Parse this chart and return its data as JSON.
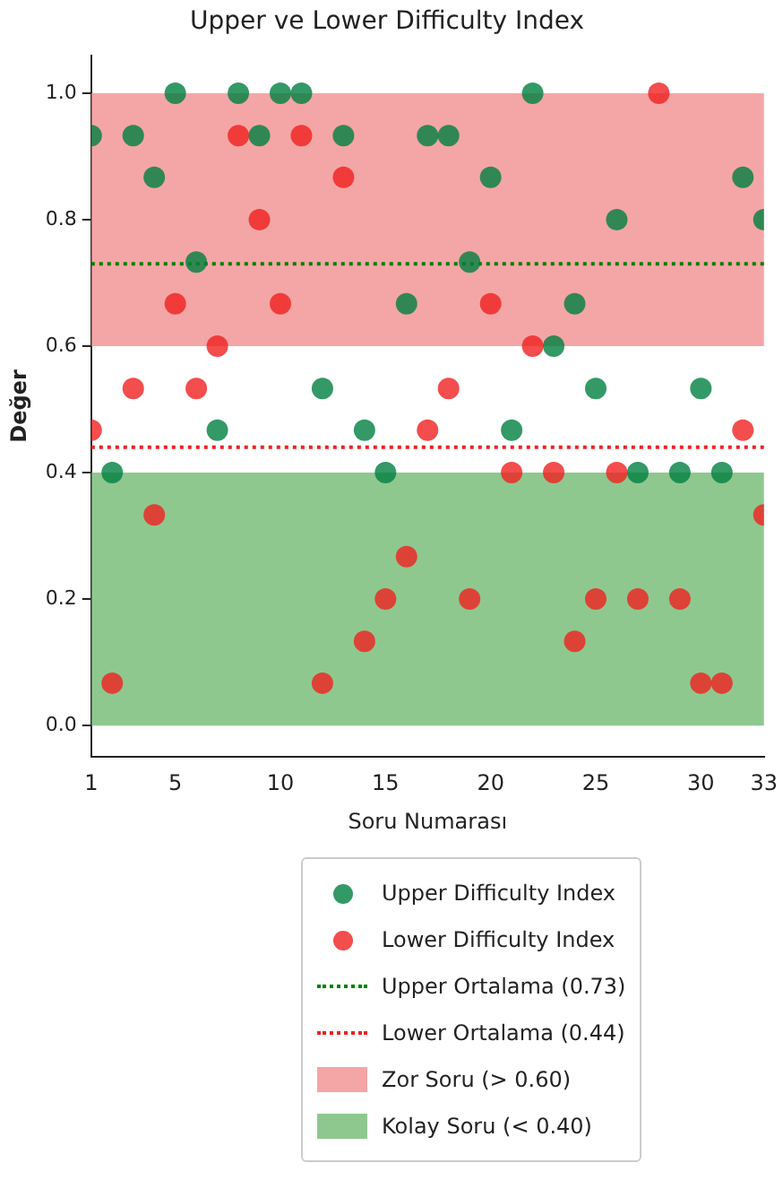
{
  "chart_data": {
    "type": "scatter",
    "title": "Upper ve Lower Difficulty Index",
    "xlabel": "Soru Numarası",
    "ylabel": "Değer",
    "x": [
      1,
      2,
      3,
      4,
      5,
      6,
      7,
      8,
      9,
      10,
      11,
      12,
      13,
      14,
      15,
      16,
      17,
      18,
      19,
      20,
      21,
      22,
      23,
      24,
      25,
      26,
      27,
      28,
      29,
      30,
      31,
      32,
      33
    ],
    "series": [
      {
        "name": "Upper Difficulty Index",
        "color": "#008040",
        "values": [
          0.933,
          0.4,
          0.933,
          0.867,
          1.0,
          0.733,
          0.467,
          1.0,
          0.933,
          1.0,
          1.0,
          0.533,
          0.933,
          0.467,
          0.4,
          0.667,
          0.933,
          0.933,
          0.733,
          0.867,
          0.467,
          1.0,
          0.6,
          0.667,
          0.533,
          0.8,
          0.4,
          null,
          0.4,
          0.533,
          0.4,
          0.867,
          0.8
        ]
      },
      {
        "name": "Lower Difficulty Index",
        "color": "#f02020",
        "values": [
          0.467,
          0.067,
          0.533,
          0.333,
          0.667,
          0.533,
          0.6,
          0.933,
          0.8,
          0.667,
          0.933,
          0.067,
          0.867,
          0.133,
          0.2,
          0.267,
          0.467,
          0.533,
          0.2,
          0.667,
          0.4,
          0.6,
          0.4,
          0.133,
          0.2,
          0.4,
          0.2,
          1.0,
          0.2,
          0.067,
          0.067,
          0.467,
          0.333
        ]
      }
    ],
    "ref_lines": [
      {
        "axis": "y",
        "value": 0.73,
        "label": "Upper Ortalama (0.73)",
        "color": "#008000",
        "line_style": "dotted"
      },
      {
        "axis": "y",
        "value": 0.44,
        "label": "Lower Ortalama (0.44)",
        "color": "#f02020",
        "line_style": "dotted"
      }
    ],
    "bands": [
      {
        "axis": "y",
        "from": 0.6,
        "to": 1.0,
        "label": "Zor Soru (> 0.60)",
        "color": "#f08080"
      },
      {
        "axis": "y",
        "from": 0.0,
        "to": 0.4,
        "label": "Kolay Soru (< 0.40)",
        "color": "#60b060"
      }
    ],
    "xlim": [
      1,
      33
    ],
    "xticks": [
      1,
      5,
      10,
      15,
      20,
      25,
      30,
      33
    ],
    "ylim": [
      -0.05,
      1.06
    ],
    "yticks": [
      {
        "value": 0,
        "label": "0.0"
      },
      0.2,
      0.4,
      0.6,
      0.8,
      {
        "value": 1,
        "label": "1.0"
      }
    ],
    "grid": false,
    "legend": "bottom",
    "marker": "circle"
  }
}
